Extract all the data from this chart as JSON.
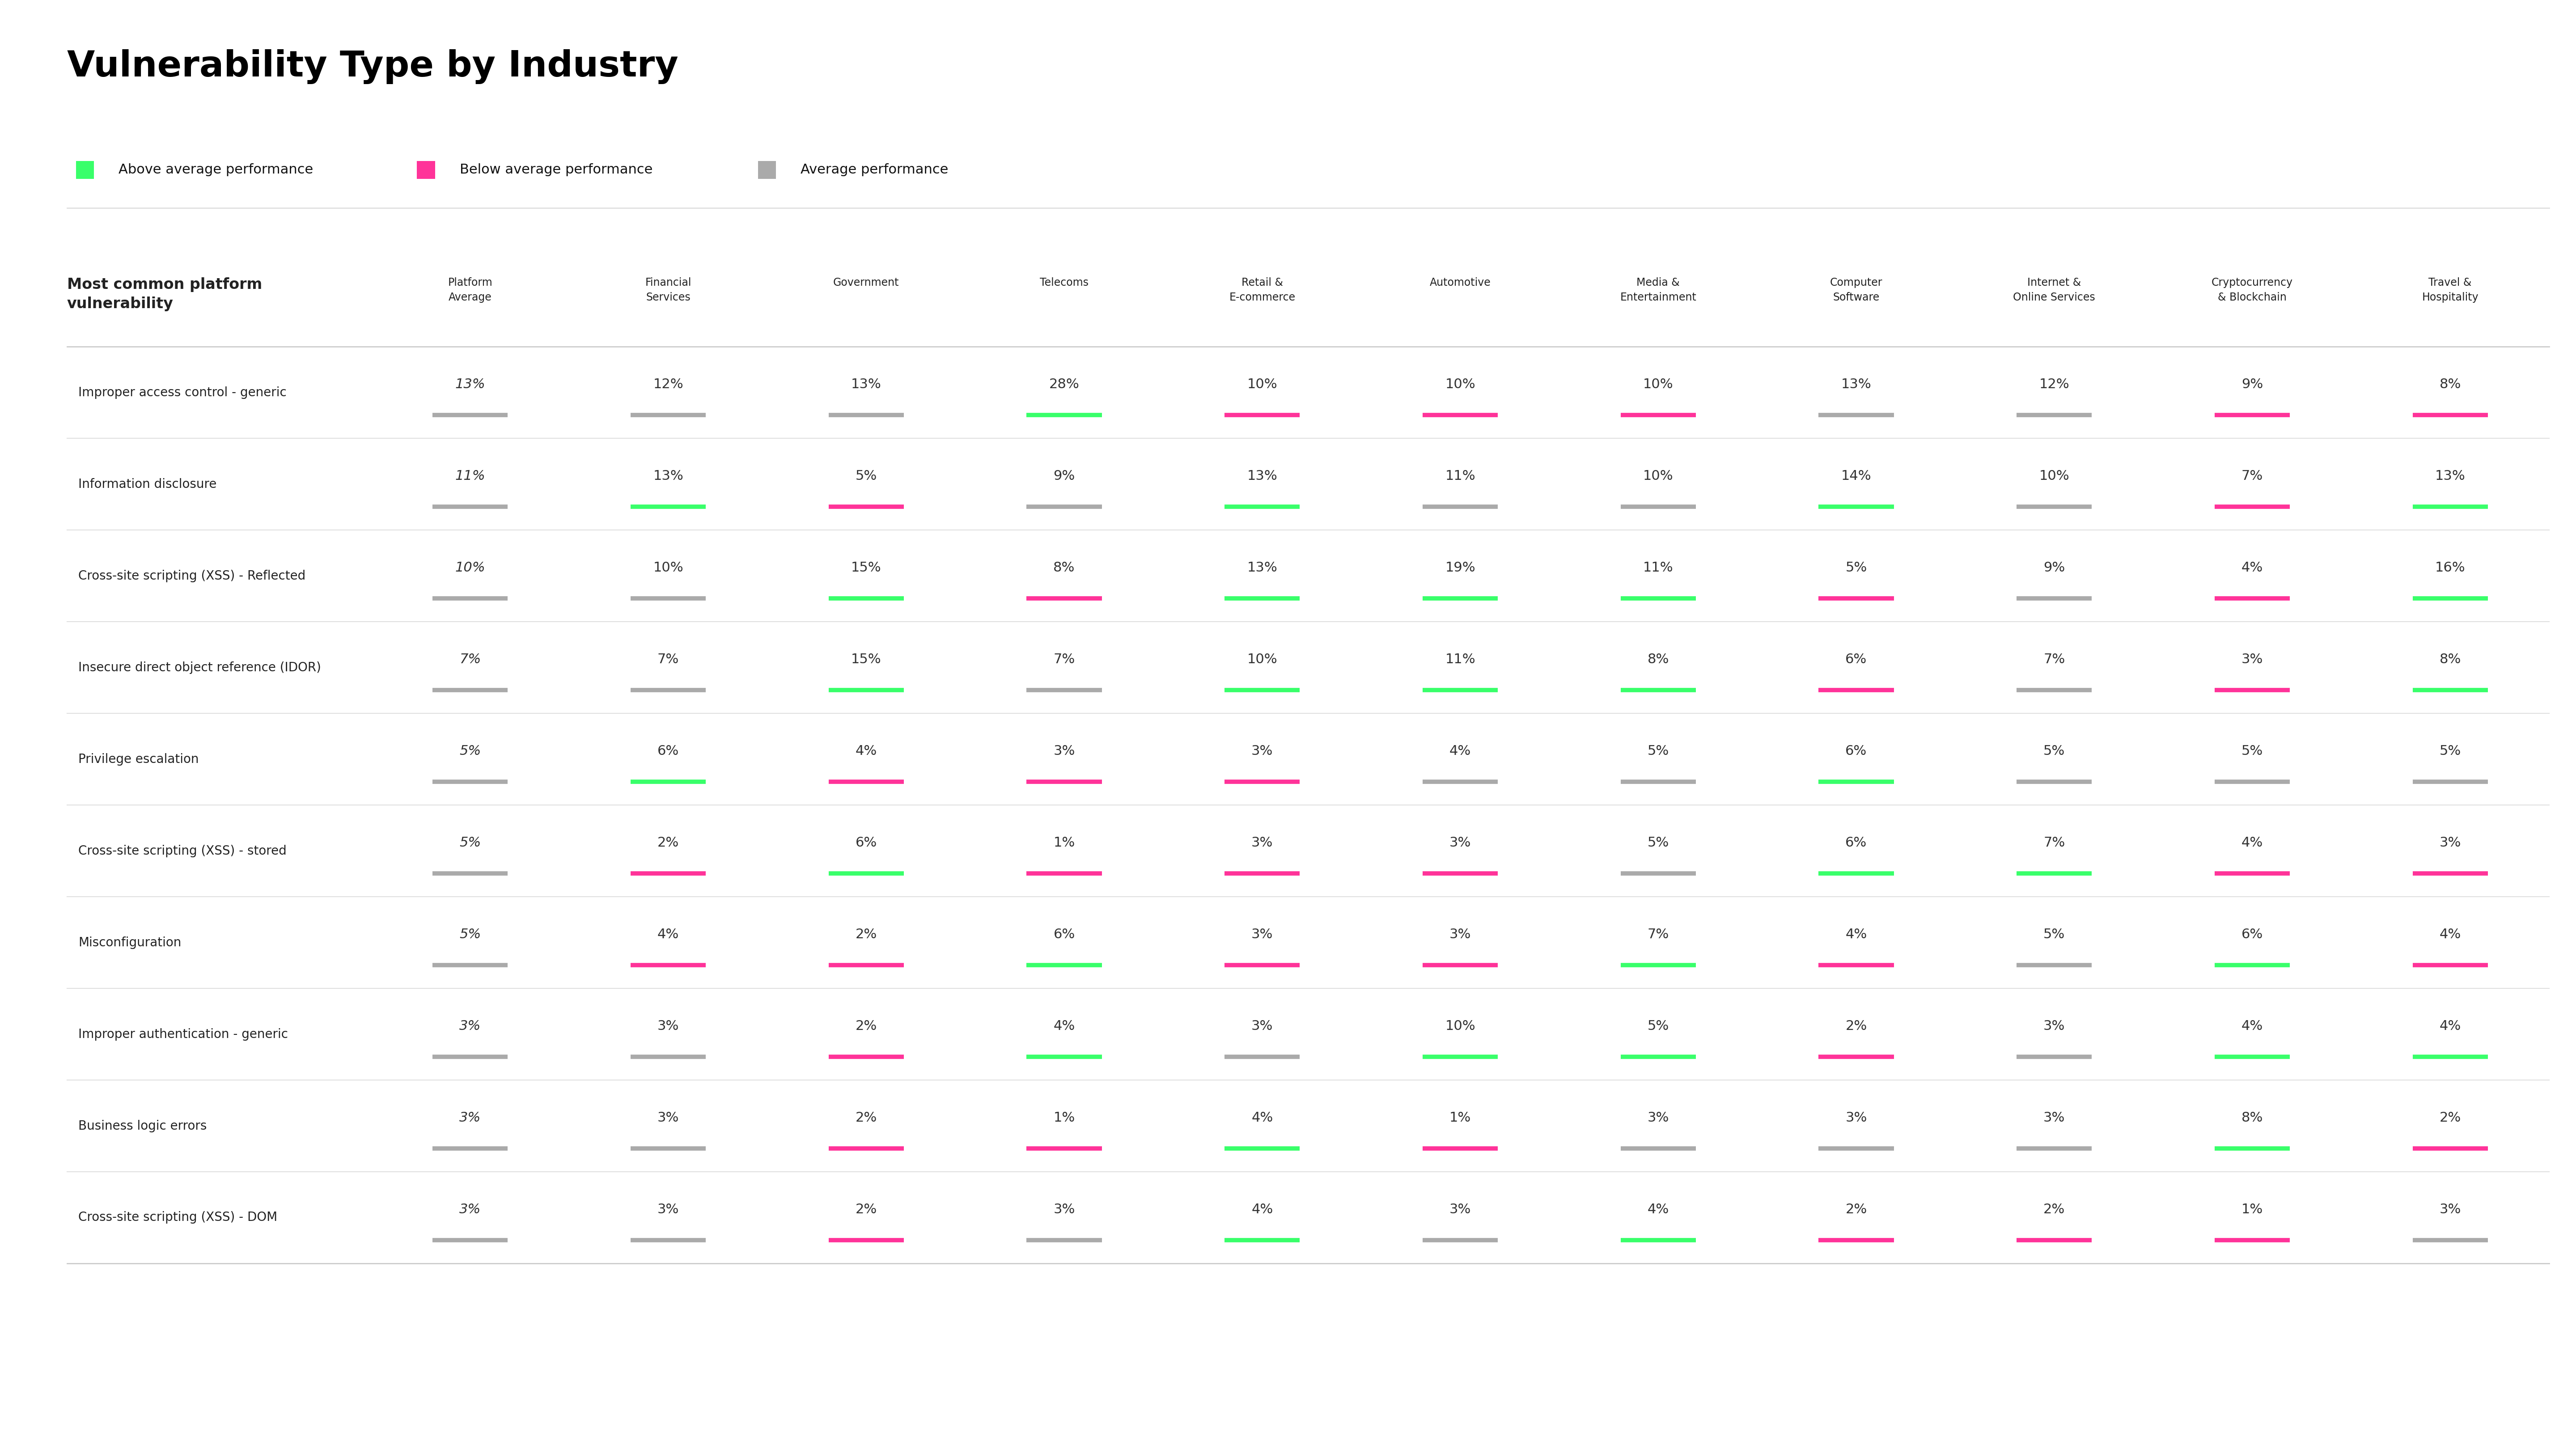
{
  "title": "Vulnerability Type by Industry",
  "legend": [
    {
      "label": "Above average performance",
      "color": "#39FF6A"
    },
    {
      "label": "Below average performance",
      "color": "#FF3399"
    },
    {
      "label": "Average performance",
      "color": "#AAAAAA"
    }
  ],
  "col_headers": [
    {
      "line1": "Platform",
      "line2": "Average"
    },
    {
      "line1": "Financial",
      "line2": "Services"
    },
    {
      "line1": "Government",
      "line2": ""
    },
    {
      "line1": "Telecoms",
      "line2": ""
    },
    {
      "line1": "Retail &",
      "line2": "E-commerce"
    },
    {
      "line1": "Automotive",
      "line2": ""
    },
    {
      "line1": "Media &",
      "line2": "Entertainment"
    },
    {
      "line1": "Computer",
      "line2": "Software"
    },
    {
      "line1": "Internet &",
      "line2": "Online Services"
    },
    {
      "line1": "Cryptocurrency",
      "line2": "& Blockchain"
    },
    {
      "line1": "Travel &",
      "line2": "Hospitality"
    }
  ],
  "rows": [
    {
      "name": "Improper access control - generic",
      "values": [
        "13%",
        "12%",
        "13%",
        "28%",
        "10%",
        "10%",
        "10%",
        "13%",
        "12%",
        "9%",
        "8%"
      ],
      "colors": [
        "avg",
        "avg",
        "avg",
        "above",
        "below",
        "below",
        "below",
        "avg",
        "avg",
        "below",
        "below"
      ]
    },
    {
      "name": "Information disclosure",
      "values": [
        "11%",
        "13%",
        "5%",
        "9%",
        "13%",
        "11%",
        "10%",
        "14%",
        "10%",
        "7%",
        "13%"
      ],
      "colors": [
        "avg",
        "above",
        "below",
        "avg",
        "above",
        "avg",
        "avg",
        "above",
        "avg",
        "below",
        "above"
      ]
    },
    {
      "name": "Cross-site scripting (XSS) - Reflected",
      "values": [
        "10%",
        "10%",
        "15%",
        "8%",
        "13%",
        "19%",
        "11%",
        "5%",
        "9%",
        "4%",
        "16%"
      ],
      "colors": [
        "avg",
        "avg",
        "above",
        "below",
        "above",
        "above",
        "above",
        "below",
        "avg",
        "below",
        "above"
      ]
    },
    {
      "name": "Insecure direct object reference (IDOR)",
      "values": [
        "7%",
        "7%",
        "15%",
        "7%",
        "10%",
        "11%",
        "8%",
        "6%",
        "7%",
        "3%",
        "8%"
      ],
      "colors": [
        "avg",
        "avg",
        "above",
        "avg",
        "above",
        "above",
        "above",
        "below",
        "avg",
        "below",
        "above"
      ]
    },
    {
      "name": "Privilege escalation",
      "values": [
        "5%",
        "6%",
        "4%",
        "3%",
        "3%",
        "4%",
        "5%",
        "6%",
        "5%",
        "5%",
        "5%"
      ],
      "colors": [
        "avg",
        "above",
        "below",
        "below",
        "below",
        "avg",
        "avg",
        "above",
        "avg",
        "avg",
        "avg"
      ]
    },
    {
      "name": "Cross-site scripting (XSS) - stored",
      "values": [
        "5%",
        "2%",
        "6%",
        "1%",
        "3%",
        "3%",
        "5%",
        "6%",
        "7%",
        "4%",
        "3%"
      ],
      "colors": [
        "avg",
        "below",
        "above",
        "below",
        "below",
        "below",
        "avg",
        "above",
        "above",
        "below",
        "below"
      ]
    },
    {
      "name": "Misconfiguration",
      "values": [
        "5%",
        "4%",
        "2%",
        "6%",
        "3%",
        "3%",
        "7%",
        "4%",
        "5%",
        "6%",
        "4%"
      ],
      "colors": [
        "avg",
        "below",
        "below",
        "above",
        "below",
        "below",
        "above",
        "below",
        "avg",
        "above",
        "below"
      ]
    },
    {
      "name": "Improper authentication - generic",
      "values": [
        "3%",
        "3%",
        "2%",
        "4%",
        "3%",
        "10%",
        "5%",
        "2%",
        "3%",
        "4%",
        "4%"
      ],
      "colors": [
        "avg",
        "avg",
        "below",
        "above",
        "avg",
        "above",
        "above",
        "below",
        "avg",
        "above",
        "above"
      ]
    },
    {
      "name": "Business logic errors",
      "values": [
        "3%",
        "3%",
        "2%",
        "1%",
        "4%",
        "1%",
        "3%",
        "3%",
        "3%",
        "8%",
        "2%"
      ],
      "colors": [
        "avg",
        "avg",
        "below",
        "below",
        "above",
        "below",
        "avg",
        "avg",
        "avg",
        "above",
        "below"
      ]
    },
    {
      "name": "Cross-site scripting (XSS) - DOM",
      "values": [
        "3%",
        "3%",
        "2%",
        "3%",
        "4%",
        "3%",
        "4%",
        "2%",
        "2%",
        "1%",
        "3%"
      ],
      "colors": [
        "avg",
        "avg",
        "below",
        "avg",
        "above",
        "avg",
        "above",
        "below",
        "below",
        "below",
        "avg"
      ]
    }
  ],
  "color_map": {
    "above": "#39FF6A",
    "below": "#FF3399",
    "avg": "#AAAAAA"
  },
  "bg_color": "#FFFFFF",
  "title_color": "#000000",
  "header_text_color": "#222222",
  "row_text_color": "#222222",
  "value_text_color": "#333333",
  "separator_color_strong": "#CCCCCC",
  "separator_color_light": "#E0E0E0"
}
